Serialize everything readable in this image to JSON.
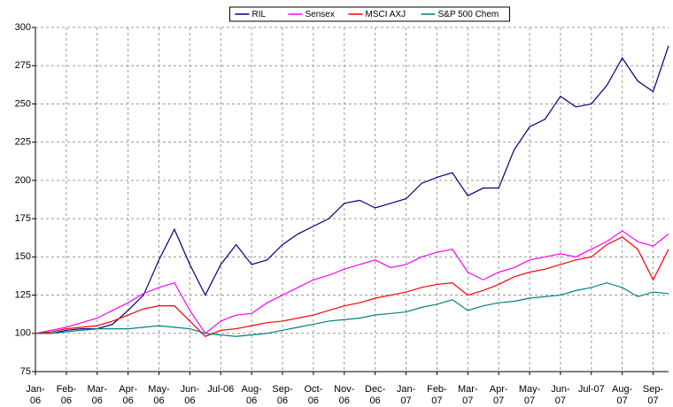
{
  "chart_data": {
    "type": "line",
    "x": [
      0,
      0.5,
      1,
      1.5,
      2,
      2.5,
      3,
      3.5,
      4,
      4.5,
      5,
      5.5,
      6,
      6.5,
      7,
      7.5,
      8,
      8.5,
      9,
      9.5,
      10,
      10.5,
      11,
      11.5,
      12,
      12.5,
      13,
      13.5,
      14,
      14.5,
      15,
      15.5,
      16,
      16.5,
      17,
      17.5,
      18,
      18.5,
      19,
      19.5,
      20,
      20.5
    ],
    "series": [
      {
        "name": "RIL",
        "color": "#000080",
        "values": [
          100,
          100,
          102,
          103,
          103,
          106,
          115,
          125,
          148,
          168,
          145,
          125,
          145,
          158,
          145,
          148,
          158,
          165,
          170,
          175,
          185,
          187,
          182,
          185,
          188,
          198,
          202,
          205,
          190,
          195,
          195,
          220,
          235,
          240,
          255,
          248,
          250,
          262,
          280,
          265,
          258,
          288
        ]
      },
      {
        "name": "Sensex",
        "color": "#ff00ff",
        "values": [
          100,
          102,
          104,
          107,
          110,
          115,
          120,
          126,
          130,
          133,
          115,
          100,
          108,
          112,
          113,
          120,
          125,
          130,
          135,
          138,
          142,
          145,
          148,
          143,
          145,
          150,
          153,
          155,
          140,
          135,
          140,
          143,
          148,
          150,
          152,
          150,
          155,
          160,
          167,
          160,
          157,
          165
        ]
      },
      {
        "name": "MSCI AXJ",
        "color": "#ff0000",
        "values": [
          100,
          101,
          103,
          104,
          105,
          108,
          112,
          116,
          118,
          118,
          108,
          98,
          102,
          103,
          105,
          107,
          108,
          110,
          112,
          115,
          118,
          120,
          123,
          125,
          127,
          130,
          132,
          133,
          125,
          128,
          132,
          137,
          140,
          142,
          145,
          148,
          150,
          158,
          163,
          155,
          135,
          155
        ]
      },
      {
        "name": "S&P 500 Chem",
        "color": "#008080",
        "values": [
          100,
          100,
          101,
          102,
          103,
          103,
          103,
          104,
          105,
          104,
          103,
          100,
          99,
          98,
          99,
          100,
          102,
          104,
          106,
          108,
          109,
          110,
          112,
          113,
          114,
          117,
          119,
          122,
          115,
          118,
          120,
          121,
          123,
          124,
          125,
          128,
          130,
          133,
          130,
          124,
          127,
          126
        ]
      }
    ],
    "xlim": [
      0,
      20.5
    ],
    "xticks": [
      {
        "value": 0,
        "label": "Jan-06"
      },
      {
        "value": 1,
        "label": "Feb-06"
      },
      {
        "value": 2,
        "label": "Mar-06"
      },
      {
        "value": 3,
        "label": "Apr-06"
      },
      {
        "value": 4,
        "label": "May-06"
      },
      {
        "value": 5,
        "label": "Jun-06"
      },
      {
        "value": 6,
        "label": "Jul-06"
      },
      {
        "value": 7,
        "label": "Aug-06"
      },
      {
        "value": 8,
        "label": "Sep-06"
      },
      {
        "value": 9,
        "label": "Oct-06"
      },
      {
        "value": 10,
        "label": "Nov-06"
      },
      {
        "value": 11,
        "label": "Dec-06"
      },
      {
        "value": 12,
        "label": "Jan-07"
      },
      {
        "value": 13,
        "label": "Feb-07"
      },
      {
        "value": 14,
        "label": "Mar-07"
      },
      {
        "value": 15,
        "label": "Apr-07"
      },
      {
        "value": 16,
        "label": "May-07"
      },
      {
        "value": 17,
        "label": "Jun-07"
      },
      {
        "value": 18,
        "label": "Jul-07"
      },
      {
        "value": 19,
        "label": "Aug-07"
      },
      {
        "value": 20,
        "label": "Sep-07"
      }
    ],
    "ylim": [
      75,
      300
    ],
    "yticks": [
      75,
      100,
      125,
      150,
      175,
      200,
      225,
      250,
      275,
      300
    ],
    "grid": true,
    "legend": "top"
  }
}
